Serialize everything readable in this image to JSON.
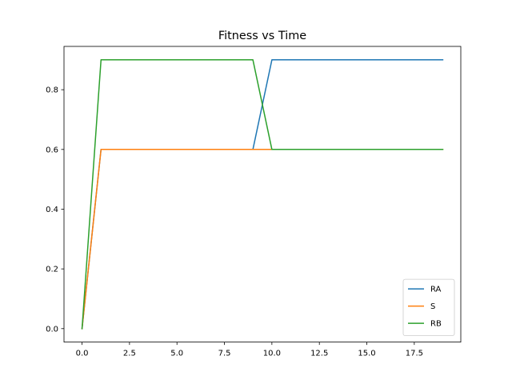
{
  "chart_data": {
    "type": "line",
    "title": "Fitness vs Time",
    "xlabel": "",
    "ylabel": "",
    "xlim": [
      -0.95,
      19.95
    ],
    "ylim": [
      -0.045,
      0.945
    ],
    "x_ticks": [
      0.0,
      2.5,
      5.0,
      7.5,
      10.0,
      12.5,
      15.0,
      17.5
    ],
    "x_tick_labels": [
      "0.0",
      "2.5",
      "5.0",
      "7.5",
      "10.0",
      "12.5",
      "15.0",
      "17.5"
    ],
    "y_ticks": [
      0.0,
      0.2,
      0.4,
      0.6,
      0.8
    ],
    "y_tick_labels": [
      "0.0",
      "0.2",
      "0.4",
      "0.6",
      "0.8"
    ],
    "grid": false,
    "legend_position": "bottom-right",
    "x": [
      0,
      1,
      2,
      3,
      4,
      5,
      6,
      7,
      8,
      9,
      10,
      11,
      12,
      13,
      14,
      15,
      16,
      17,
      18,
      19
    ],
    "series": [
      {
        "name": "RA",
        "color": "#1f77b4",
        "values": [
          0.0,
          0.6,
          0.6,
          0.6,
          0.6,
          0.6,
          0.6,
          0.6,
          0.6,
          0.6,
          0.9,
          0.9,
          0.9,
          0.9,
          0.9,
          0.9,
          0.9,
          0.9,
          0.9,
          0.9
        ]
      },
      {
        "name": "S",
        "color": "#ff7f0e",
        "values": [
          0.0,
          0.6,
          0.6,
          0.6,
          0.6,
          0.6,
          0.6,
          0.6,
          0.6,
          0.6,
          0.6,
          0.6,
          0.6,
          0.6,
          0.6,
          0.6,
          0.6,
          0.6,
          0.6,
          0.6
        ]
      },
      {
        "name": "RB",
        "color": "#2ca02c",
        "values": [
          0.0,
          0.9,
          0.9,
          0.9,
          0.9,
          0.9,
          0.9,
          0.9,
          0.9,
          0.9,
          0.6,
          0.6,
          0.6,
          0.6,
          0.6,
          0.6,
          0.6,
          0.6,
          0.6,
          0.6
        ]
      }
    ]
  }
}
